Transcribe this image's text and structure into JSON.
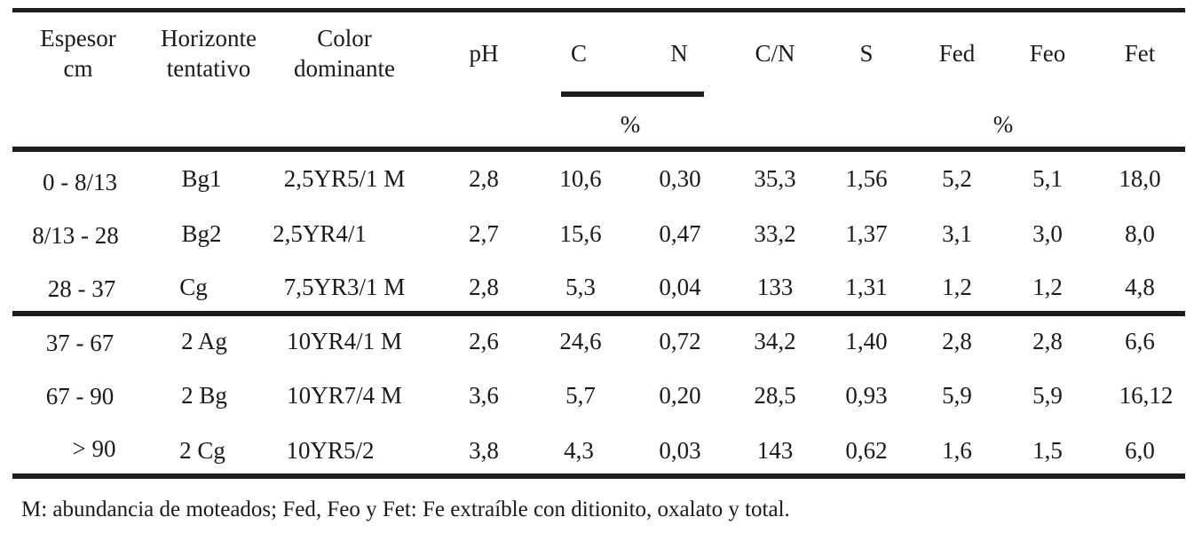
{
  "table": {
    "headers": {
      "espesor": "Espesor",
      "espesor_unit": "cm",
      "horizonte_1": "Horizonte",
      "horizonte_2": "tentativo",
      "color_1": "Color",
      "color_2": "dominante",
      "ph": "pH",
      "c": "C",
      "n": "N",
      "cn": "C/N",
      "s": "S",
      "fed": "Fed",
      "feo": "Feo",
      "fet": "Fet",
      "pct_1": "%",
      "pct_2": "%"
    },
    "rows": [
      {
        "espesor": "0 - 8/13",
        "horizonte": "Bg1",
        "color": "2,5YR5/1 M",
        "ph": "2,8",
        "c": "10,6",
        "n": "0,30",
        "cn": "35,3",
        "s": "1,56",
        "fed": "5,2",
        "feo": "5,1",
        "fet": "18,0"
      },
      {
        "espesor": "8/13 - 28",
        "horizonte": "Bg2",
        "color": "2,5YR4/1",
        "ph": "2,7",
        "c": "15,6",
        "n": "0,47",
        "cn": "33,2",
        "s": "1,37",
        "fed": "3,1",
        "feo": "3,0",
        "fet": "8,0"
      },
      {
        "espesor": "28 - 37",
        "horizonte": "Cg",
        "color": "7,5YR3/1 M",
        "ph": "2,8",
        "c": "5,3",
        "n": "0,04",
        "cn": "133",
        "s": "1,31",
        "fed": "1,2",
        "feo": "1,2",
        "fet": "4,8"
      },
      {
        "espesor": "37 - 67",
        "horizonte": "2 Ag",
        "color": "10YR4/1 M",
        "ph": "2,6",
        "c": "24,6",
        "n": "0,72",
        "cn": "34,2",
        "s": "1,40",
        "fed": "2,8",
        "feo": "2,8",
        "fet": "6,6"
      },
      {
        "espesor": "67 - 90",
        "horizonte": "2 Bg",
        "color": "10YR7/4 M",
        "ph": "3,6",
        "c": "5,7",
        "n": "0,20",
        "cn": "28,5",
        "s": "0,93",
        "fed": "5,9",
        "feo": "5,9",
        "fet": "16,12"
      },
      {
        "espesor": "> 90",
        "horizonte": "2 Cg",
        "color": "10YR5/2",
        "ph": "3,8",
        "c": "4,3",
        "n": "0,03",
        "cn": "143",
        "s": "0,62",
        "fed": "1,6",
        "feo": "1,5",
        "fet": "6,0"
      }
    ]
  },
  "footnote": "M: abundancia de moteados; Fed, Feo y Fet: Fe  extraíble con ditionito, oxalato y total."
}
